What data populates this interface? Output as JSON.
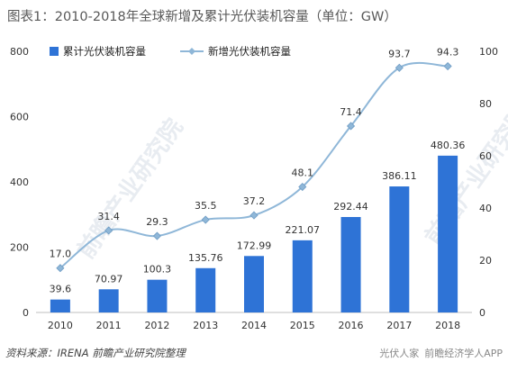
{
  "title": "图表1：2010-2018年全球新增及累计光伏装机容量（单位：GW）",
  "source": "资料来源：IRENA  前瞻产业研究院整理",
  "watermarks": [
    "前瞻产业研究院",
    "前瞻产业研究院"
  ],
  "footer_brand": "前瞻经济学人APP",
  "footer_brand_sub": "光伏人家",
  "colors": {
    "bar": "#2e73d6",
    "line": "#8fb7d8",
    "marker": "#8fb7d8",
    "grid": "#cccccc"
  },
  "chart_data": {
    "type": "bar",
    "categories": [
      "2010",
      "2011",
      "2012",
      "2013",
      "2014",
      "2015",
      "2016",
      "2017",
      "2018"
    ],
    "series": [
      {
        "name": "累计光伏装机容量",
        "type": "bar",
        "axis": "left",
        "values": [
          39.6,
          70.97,
          100.3,
          135.76,
          172.99,
          221.07,
          292.44,
          386.11,
          480.36
        ],
        "labels": [
          "39.6",
          "70.97",
          "100.3",
          "135.76",
          "172.99",
          "221.07",
          "292.44",
          "386.11",
          "480.36"
        ]
      },
      {
        "name": "新增光伏装机容量",
        "type": "line",
        "axis": "right",
        "values": [
          17.0,
          31.4,
          29.3,
          35.5,
          37.2,
          48.1,
          71.4,
          93.7,
          94.3
        ],
        "labels": [
          "17.0",
          "31.4",
          "29.3",
          "35.5",
          "37.2",
          "48.1",
          "71.4",
          "93.7",
          "94.3"
        ]
      }
    ],
    "ylim_left": [
      0,
      800
    ],
    "yticks_left": [
      "0",
      "200",
      "400",
      "600",
      "800"
    ],
    "ylim_right": [
      0,
      100
    ],
    "yticks_right": [
      "0",
      "20",
      "40",
      "60",
      "80",
      "100"
    ],
    "legend_position": "top-left",
    "grid": false
  }
}
